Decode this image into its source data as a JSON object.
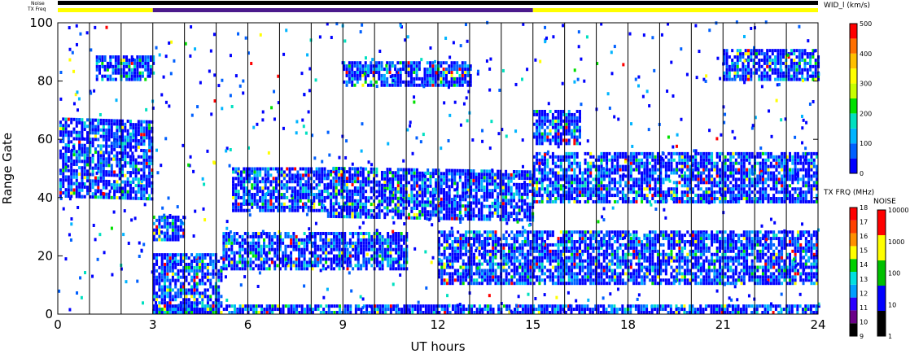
{
  "chart_data": {
    "type": "heatmap",
    "xlabel": "UT hours",
    "ylabel": "Range Gate",
    "xlim": [
      0,
      24
    ],
    "ylim": [
      0,
      100
    ],
    "x_ticks": [
      "0",
      "3",
      "6",
      "9",
      "12",
      "15",
      "18",
      "21",
      "24"
    ],
    "y_ticks": [
      "0",
      "20",
      "40",
      "60",
      "80",
      "100"
    ],
    "hour_gridlines": true,
    "top_bars": {
      "noise_label": "Noise",
      "txfreq_label": "TX Freq",
      "segments": [
        {
          "start": 0,
          "end": 3,
          "color": "#ffff00"
        },
        {
          "start": 3,
          "end": 15,
          "color": "#4b1a8c"
        },
        {
          "start": 15,
          "end": 24,
          "color": "#ffff00"
        }
      ]
    },
    "echo_bands": [
      {
        "x0": 0.05,
        "x1": 3.0,
        "y0": 40,
        "y1": 67,
        "slope": -0.35
      },
      {
        "x0": 1.2,
        "x1": 3.0,
        "y0": 80,
        "y1": 88,
        "slope": 0
      },
      {
        "x0": 3.0,
        "x1": 5.2,
        "y0": 0,
        "y1": 20,
        "slope": 0
      },
      {
        "x0": 3.0,
        "x1": 4.0,
        "y0": 25,
        "y1": 33,
        "slope": 0
      },
      {
        "x0": 5.2,
        "x1": 11.0,
        "y0": 15,
        "y1": 28,
        "slope": 0
      },
      {
        "x0": 5.5,
        "x1": 8.5,
        "y0": 35,
        "y1": 50,
        "slope": 0
      },
      {
        "x0": 8.5,
        "x1": 15.0,
        "y0": 33,
        "y1": 50,
        "slope": -0.2
      },
      {
        "x0": 9.0,
        "x1": 13.0,
        "y0": 78,
        "y1": 86,
        "slope": 0
      },
      {
        "x0": 12.0,
        "x1": 15.0,
        "y0": 10,
        "y1": 28,
        "slope": 0
      },
      {
        "x0": 15.0,
        "x1": 24.0,
        "y0": 10,
        "y1": 28,
        "slope": 0
      },
      {
        "x0": 15.0,
        "x1": 24.0,
        "y0": 38,
        "y1": 55,
        "slope": 0
      },
      {
        "x0": 15.0,
        "x1": 16.5,
        "y0": 58,
        "y1": 70,
        "slope": 0
      },
      {
        "x0": 21.0,
        "x1": 24.0,
        "y0": 80,
        "y1": 90,
        "slope": 0
      },
      {
        "x0": 3.0,
        "x1": 24.0,
        "y0": 0,
        "y1": 3,
        "slope": 0
      }
    ],
    "colorbars": [
      {
        "title": "WID_l (km/s)",
        "ticks": [
          "500",
          "400",
          "300",
          "200",
          "100",
          "0"
        ],
        "colors": [
          "#0000ff",
          "#0060ff",
          "#00b4ff",
          "#00e0c0",
          "#00e000",
          "#c8ff00",
          "#ffff00",
          "#ffc000",
          "#ff7000",
          "#ff0000"
        ]
      },
      {
        "title": "TX FRQ (MHz)",
        "ticks": [
          "18",
          "17",
          "16",
          "15",
          "14",
          "13",
          "12",
          "11",
          "10",
          "9"
        ],
        "colors": [
          "#000000",
          "#6a0088",
          "#2a00ff",
          "#00a0ff",
          "#00e0e0",
          "#00d000",
          "#ffff00",
          "#ff9000",
          "#ff4000",
          "#ff0000"
        ]
      },
      {
        "title": "NOISE",
        "ticks": [
          "10000",
          "1000",
          "100",
          "10",
          "1"
        ],
        "colors": [
          "#000000",
          "#0000ff",
          "#00c000",
          "#ffff00",
          "#ff0000"
        ]
      }
    ]
  }
}
